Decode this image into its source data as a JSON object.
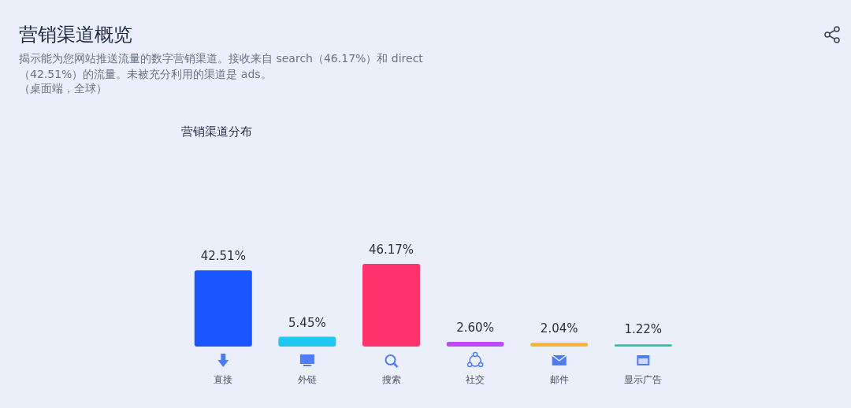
{
  "chart_data": {
    "type": "bar",
    "title": "营销渠道概览",
    "subtitle": "揭示能为您网站推送流量的数字营销渠道。接收来自 search（46.17%）和 direct（42.51%）的流量。未被充分利用的渠道是 ads。",
    "annotations": [
      "（桌面端，全球）",
      "营销渠道分布"
    ],
    "categories": [
      "直接",
      "外链",
      "搜索",
      "社交",
      "邮件",
      "显示广告"
    ],
    "values": [
      42.51,
      5.45,
      46.17,
      2.6,
      2.04,
      1.22
    ],
    "colors": [
      "#1a56ff",
      "#1ec8f0",
      "#ff336b",
      "#bb4df0",
      "#f5b437",
      "#1fc6a0"
    ],
    "value_labels": [
      "42.51%",
      "5.45%",
      "46.17%",
      "2.60%",
      "2.04%",
      "1.22%"
    ]
  }
}
